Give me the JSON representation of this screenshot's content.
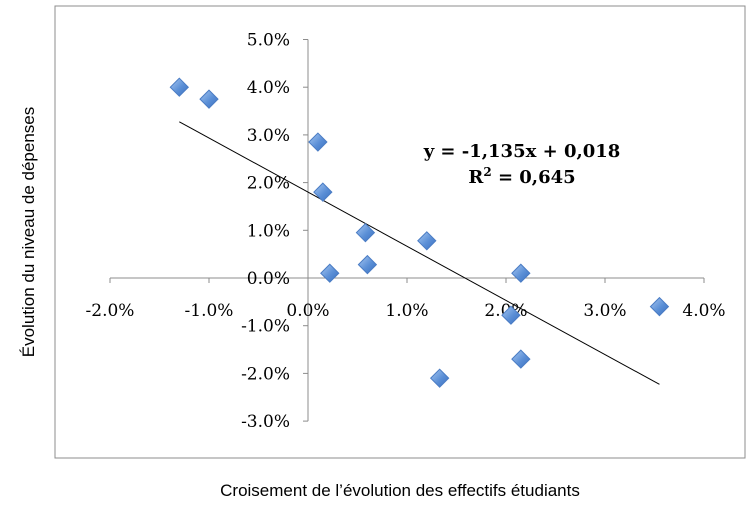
{
  "chart_data": {
    "type": "scatter",
    "xlabel": "Croisement de l’évolution des effectifs étudiants",
    "ylabel": "Évolution du niveau de dépenses",
    "xlim": [
      -2.0,
      4.0
    ],
    "ylim": [
      -3.0,
      5.0
    ],
    "x_ticks": [
      "-2.0%",
      "-1.0%",
      "0.0%",
      "1.0%",
      "2.0%",
      "3.0%",
      "4.0%"
    ],
    "y_ticks": [
      "5.0%",
      "4.0%",
      "3.0%",
      "2.0%",
      "1.0%",
      "0.0%",
      "-1.0%",
      "-2.0%",
      "-3.0%"
    ],
    "grid": false,
    "legend": "none",
    "marker": "diamond",
    "marker_color": "#5b8fd6",
    "points": [
      {
        "x": -1.3,
        "y": 4.0
      },
      {
        "x": -1.0,
        "y": 3.75
      },
      {
        "x": 0.1,
        "y": 2.85
      },
      {
        "x": 0.15,
        "y": 1.8
      },
      {
        "x": 0.22,
        "y": 0.1
      },
      {
        "x": 0.58,
        "y": 0.95
      },
      {
        "x": 0.6,
        "y": 0.28
      },
      {
        "x": 1.2,
        "y": 0.78
      },
      {
        "x": 1.33,
        "y": -2.1
      },
      {
        "x": 2.05,
        "y": -0.78
      },
      {
        "x": 2.15,
        "y": 0.1
      },
      {
        "x": 2.15,
        "y": -1.7
      },
      {
        "x": 3.55,
        "y": -0.6
      }
    ],
    "trendline": {
      "slope": -1.135,
      "intercept": 1.8,
      "x_range": [
        -1.3,
        3.55
      ]
    },
    "annotation": {
      "equation": "y = -1,135x + 0,018",
      "r2_prefix": "R",
      "r2_sup": "2",
      "r2_suffix": " = 0,645"
    }
  }
}
